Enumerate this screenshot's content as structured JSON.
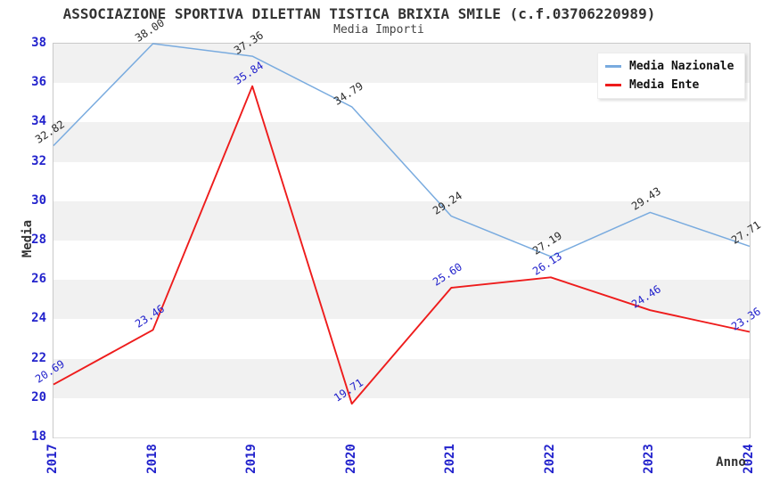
{
  "title": "ASSOCIAZIONE SPORTIVA DILETTAN TISTICA BRIXIA SMILE (c.f.03706220989)",
  "subtitle": "Media Importi",
  "chart_data": {
    "type": "line",
    "x": [
      2017,
      2018,
      2019,
      2020,
      2021,
      2022,
      2023,
      2024
    ],
    "xlabel": "Anno",
    "ylabel": "Media",
    "ylim": [
      18,
      38
    ],
    "yticks": [
      18,
      20,
      22,
      24,
      26,
      28,
      30,
      32,
      34,
      36,
      38
    ],
    "grid": "alternating-horizontal-bands",
    "legend_position": "top-right",
    "series": [
      {
        "name": "Media Nazionale",
        "color": "#79ABDF",
        "label_color": "#2b2b2b",
        "values": [
          32.82,
          38.0,
          37.36,
          34.79,
          29.24,
          27.19,
          29.43,
          27.71
        ]
      },
      {
        "name": "Media Ente",
        "color": "#EE1C1C",
        "label_color": "#2222CC",
        "values": [
          20.69,
          23.46,
          35.84,
          19.71,
          25.6,
          26.13,
          24.46,
          23.36
        ]
      }
    ]
  },
  "colors": {
    "tick_label": "#2222CC",
    "title": "#333333",
    "band_gray": "#F1F1F1",
    "band_white": "#FFFFFF",
    "band_edge": "#DCDCDC",
    "plot_border": "#C9C9C9",
    "background": "#FFFFFF",
    "legend_background": "#FFFFFF"
  }
}
